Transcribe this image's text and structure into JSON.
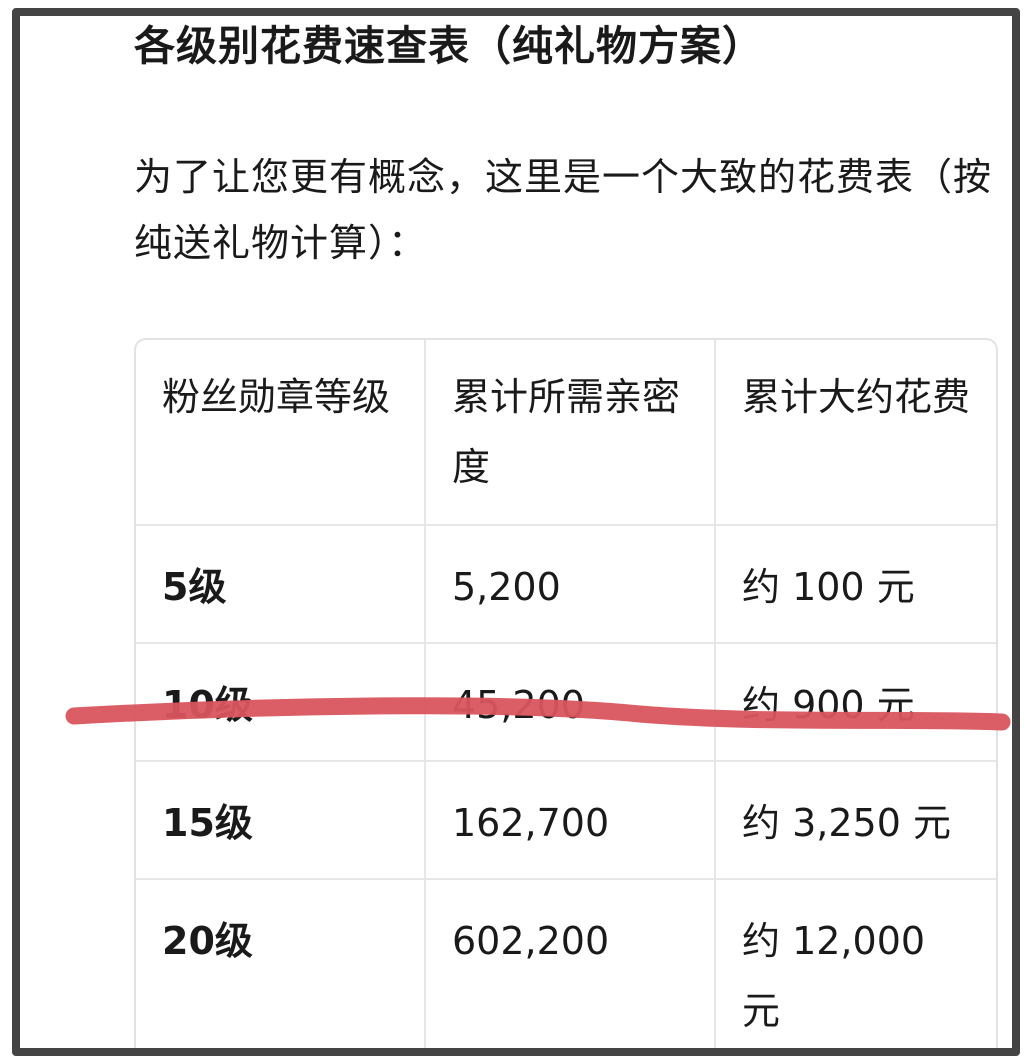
{
  "title": "各级别花费速查表（纯礼物方案）",
  "intro": "为了让您更有概念，这里是一个大致的花费表（按纯送礼物计算）：",
  "table": {
    "headers": [
      "粉丝勋章等级",
      "累计所需亲密度",
      "累计大约花费"
    ],
    "rows": [
      [
        "5级",
        "5,200",
        "约 100 元"
      ],
      [
        "10级",
        "45,200",
        "约 900 元"
      ],
      [
        "15级",
        "162,700",
        "约 3,250 元"
      ],
      [
        "20级",
        "602,200",
        "约 12,000 元"
      ]
    ]
  },
  "colors": {
    "frame": "#444444",
    "highlight_line": "#d9545e"
  }
}
